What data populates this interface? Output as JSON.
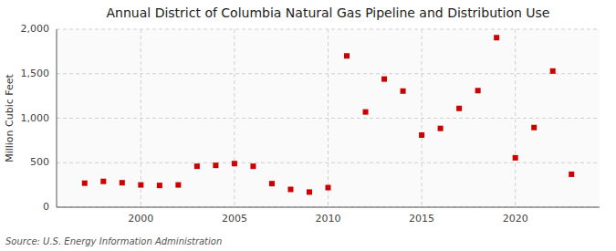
{
  "chart_data": {
    "type": "scatter",
    "title": "Annual District of Columbia Natural Gas Pipeline and Distribution Use",
    "ylabel": "Million Cubic Feet",
    "source": "Source: U.S. Energy Information Administration",
    "x": [
      1997,
      1998,
      1999,
      2000,
      2001,
      2002,
      2003,
      2004,
      2005,
      2006,
      2007,
      2008,
      2009,
      2010,
      2011,
      2012,
      2013,
      2014,
      2015,
      2016,
      2017,
      2018,
      2019,
      2020,
      2021,
      2022,
      2023
    ],
    "values": [
      270,
      290,
      275,
      250,
      245,
      250,
      460,
      470,
      490,
      460,
      265,
      200,
      170,
      220,
      1700,
      1070,
      1440,
      1305,
      810,
      885,
      1110,
      1310,
      1905,
      555,
      895,
      1530,
      370
    ],
    "color": "#cc0000",
    "marker": "square",
    "xlim": [
      1995.5,
      2024.5
    ],
    "xticks": [
      2000,
      2005,
      2010,
      2015,
      2020
    ],
    "ylim": [
      0,
      2000
    ],
    "yticks": [
      0,
      500,
      {
        "value": 1000,
        "label": "1,000"
      },
      {
        "value": 1500,
        "label": "1,500"
      },
      {
        "value": 2000,
        "label": "2,000"
      }
    ],
    "grid": true
  }
}
